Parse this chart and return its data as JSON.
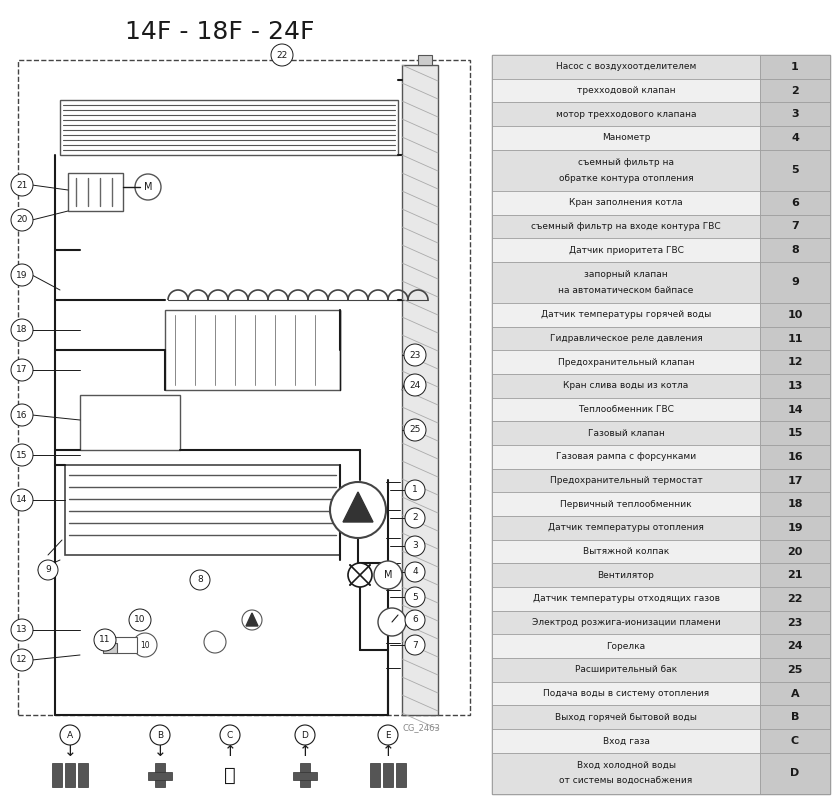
{
  "title": "14F - 18F - 24F",
  "bg_color": "#ffffff",
  "table_rows": [
    [
      "Насос с воздухоотделителем",
      "1",
      false
    ],
    [
      "трехходовой клапан",
      "2",
      false
    ],
    [
      "мотор трехходового клапана",
      "3",
      false
    ],
    [
      "Манометр",
      "4",
      false
    ],
    [
      "съемный фильтр на обратке контура отопления",
      "5",
      true
    ],
    [
      "Кран заполнения котла",
      "6",
      false
    ],
    [
      "съемный фильтр на входе контура ГВС",
      "7",
      false
    ],
    [
      "Датчик приоритета ГВС",
      "8",
      false
    ],
    [
      "запорный клапан на автоматическом байпасе",
      "9",
      true
    ],
    [
      "Датчик температуры горячей воды",
      "10",
      false
    ],
    [
      "Гидравлическое реле давления",
      "11",
      false
    ],
    [
      "Предохранительный клапан",
      "12",
      false
    ],
    [
      "Кран слива воды из котла",
      "13",
      false
    ],
    [
      "Теплообменник ГВС",
      "14",
      false
    ],
    [
      "Газовый клапан",
      "15",
      false
    ],
    [
      "Газовая рампа с форсунками",
      "16",
      false
    ],
    [
      "Предохранительный термостат",
      "17",
      false
    ],
    [
      "Первичный теплообменник",
      "18",
      false
    ],
    [
      "Датчик температуры отопления",
      "19",
      false
    ],
    [
      "Вытяжной колпак",
      "20",
      false
    ],
    [
      "Вентилятор",
      "21",
      false
    ],
    [
      "Датчик температуры отходящих газов",
      "22",
      false
    ],
    [
      "Электрод розжига-ионизации пламени",
      "23",
      false
    ],
    [
      "Горелка",
      "24",
      false
    ],
    [
      "Расширительный бак",
      "25",
      false
    ],
    [
      "Подача воды в систему отопления",
      "A",
      false
    ],
    [
      "Выход горячей бытовой воды",
      "B",
      false
    ],
    [
      "Вход газа",
      "C",
      false
    ],
    [
      "Вход холодной воды от системы водоснабжения",
      "D",
      true
    ]
  ],
  "watermark": "CG_2463",
  "line_color": "#1a1a1a",
  "gray_light": "#d8d8d8",
  "gray_mid": "#c0c0c0",
  "gray_dark": "#a0a0a0"
}
